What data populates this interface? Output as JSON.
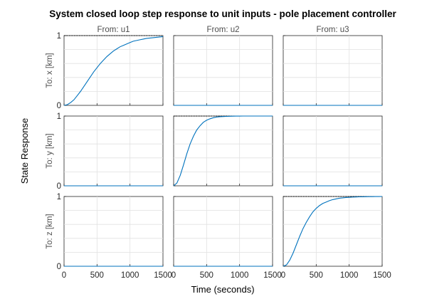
{
  "chart_data": {
    "type": "line",
    "title": "System closed loop step response to unit inputs - pole placement controller",
    "xlabel": "Time (seconds)",
    "ylabel": "State Response",
    "columns": [
      "From: u1",
      "From: u2",
      "From: u3"
    ],
    "rows": [
      "To: x [km]",
      "To: y [km]",
      "To: z [km]"
    ],
    "xlim": [
      0,
      1500
    ],
    "ylim": [
      0,
      1
    ],
    "xticks": [
      0,
      500,
      1000,
      1500
    ],
    "yticks": [
      0,
      1
    ],
    "grid": true,
    "line_color": "#0072bd",
    "t": [
      0,
      50,
      100,
      150,
      200,
      250,
      300,
      350,
      400,
      450,
      500,
      550,
      600,
      650,
      700,
      750,
      800,
      850,
      900,
      950,
      1000,
      1050,
      1100,
      1150,
      1200,
      1250,
      1300,
      1350,
      1400,
      1450,
      1500
    ],
    "subplots": [
      {
        "row": 0,
        "col": 0,
        "reference": 1,
        "values": [
          0,
          0.01,
          0.04,
          0.08,
          0.14,
          0.2,
          0.27,
          0.34,
          0.41,
          0.48,
          0.54,
          0.6,
          0.65,
          0.7,
          0.74,
          0.78,
          0.81,
          0.84,
          0.86,
          0.88,
          0.9,
          0.92,
          0.93,
          0.94,
          0.95,
          0.96,
          0.965,
          0.97,
          0.975,
          0.98,
          0.985
        ]
      },
      {
        "row": 0,
        "col": 1,
        "reference": null,
        "values": [
          0,
          0,
          0,
          0,
          0,
          0,
          0,
          0,
          0,
          0,
          0,
          0,
          0,
          0,
          0,
          0,
          0,
          0,
          0,
          0,
          0,
          0,
          0,
          0,
          0,
          0,
          0,
          0,
          0,
          0,
          0
        ]
      },
      {
        "row": 0,
        "col": 2,
        "reference": null,
        "values": [
          0,
          0,
          0,
          0,
          0,
          0,
          0,
          0,
          0,
          0,
          0,
          0,
          0,
          0,
          0,
          0,
          0,
          0,
          0,
          0,
          0,
          0,
          0,
          0,
          0,
          0,
          0,
          0,
          0,
          0,
          0
        ]
      },
      {
        "row": 1,
        "col": 0,
        "reference": null,
        "values": [
          0,
          0,
          0,
          0,
          0,
          0,
          0,
          0,
          0,
          0,
          0,
          0,
          0,
          0,
          0,
          0,
          0,
          0,
          0,
          0,
          0,
          0,
          0,
          0,
          0,
          0,
          0,
          0,
          0,
          0,
          0
        ]
      },
      {
        "row": 1,
        "col": 1,
        "reference": 1,
        "values": [
          0,
          0.04,
          0.15,
          0.3,
          0.46,
          0.6,
          0.71,
          0.8,
          0.86,
          0.91,
          0.94,
          0.96,
          0.975,
          0.985,
          0.99,
          0.993,
          0.995,
          0.997,
          0.998,
          0.999,
          0.999,
          1,
          1,
          1,
          1,
          1,
          1,
          1,
          1,
          1,
          1
        ]
      },
      {
        "row": 1,
        "col": 2,
        "reference": null,
        "values": [
          0,
          0,
          0,
          0,
          0,
          0,
          0,
          0,
          0,
          0,
          0,
          0,
          0,
          0,
          0,
          0,
          0,
          0,
          0,
          0,
          0,
          0,
          0,
          0,
          0,
          0,
          0,
          0,
          0,
          0,
          0
        ]
      },
      {
        "row": 2,
        "col": 0,
        "reference": null,
        "values": [
          0,
          0,
          0,
          0,
          0,
          0,
          0,
          0,
          0,
          0,
          0,
          0,
          0,
          0,
          0,
          0,
          0,
          0,
          0,
          0,
          0,
          0,
          0,
          0,
          0,
          0,
          0,
          0,
          0,
          0,
          0
        ]
      },
      {
        "row": 2,
        "col": 1,
        "reference": null,
        "values": [
          0,
          0,
          0,
          0,
          0,
          0,
          0,
          0,
          0,
          0,
          0,
          0,
          0,
          0,
          0,
          0,
          0,
          0,
          0,
          0,
          0,
          0,
          0,
          0,
          0,
          0,
          0,
          0,
          0,
          0,
          0
        ]
      },
      {
        "row": 2,
        "col": 2,
        "reference": 1,
        "values": [
          0,
          0.02,
          0.09,
          0.19,
          0.31,
          0.43,
          0.54,
          0.63,
          0.71,
          0.78,
          0.83,
          0.87,
          0.9,
          0.92,
          0.94,
          0.955,
          0.965,
          0.975,
          0.98,
          0.985,
          0.988,
          0.991,
          0.993,
          0.995,
          0.996,
          0.997,
          0.998,
          0.998,
          0.999,
          0.999,
          1
        ]
      }
    ]
  }
}
